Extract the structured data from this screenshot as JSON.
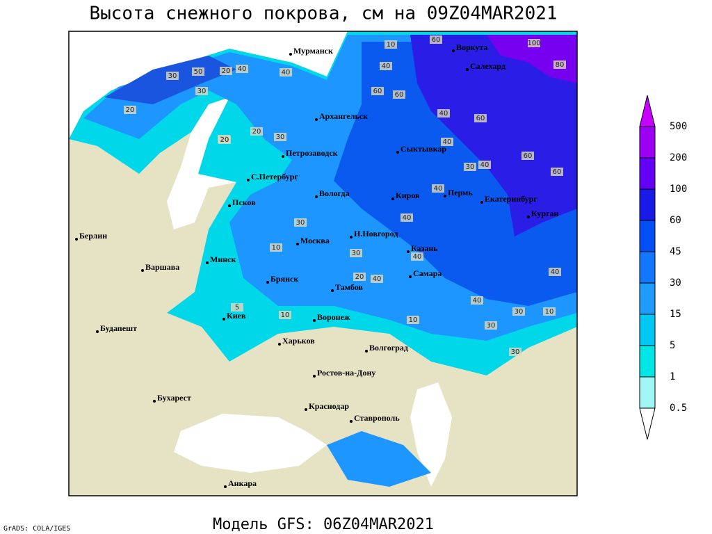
{
  "title": "Высота снежного покрова, см на 09Z04MAR2021",
  "footer": "Модель GFS: 06Z04MAR2021",
  "credit": "GrADS: COLA/IGES",
  "colorbar": {
    "levels": [
      0.5,
      1,
      5,
      15,
      30,
      45,
      60,
      100,
      200,
      500
    ],
    "colors": [
      "#ffffff",
      "#a0f5f5",
      "#00e6e6",
      "#00c8f5",
      "#1e9bff",
      "#1478ff",
      "#0050f5",
      "#1a1ae6",
      "#6400f5",
      "#9b00f5",
      "#c800ff"
    ]
  },
  "cities": [
    "Мурманск",
    "Воркута",
    "Салехард",
    "Архангельск",
    "Сыктывкар",
    "Петрозаводск",
    "С.Петербург",
    "Вологда",
    "Киров",
    "Пермь",
    "Екатеринбург",
    "Курган",
    "Псков",
    "Москва",
    "Н.Новгород",
    "Казань",
    "Берлин",
    "Варшава",
    "Минск",
    "Брянск",
    "Тамбов",
    "Самара",
    "Киев",
    "Воронеж",
    "Харьков",
    "Волгоград",
    "Будапешт",
    "Ростов-на-Дону",
    "Бухарест",
    "Краснодар",
    "Ставрополь",
    "Анкара"
  ],
  "contour_labels": [
    10,
    60,
    20,
    100,
    80,
    30,
    50,
    40,
    40,
    40,
    60,
    60,
    30,
    60,
    40,
    20,
    30,
    20,
    20,
    30,
    20,
    40,
    60,
    60,
    30,
    40,
    40,
    40,
    10,
    30,
    40,
    40,
    40,
    20,
    40,
    30,
    10,
    5,
    10,
    10,
    30,
    30
  ]
}
